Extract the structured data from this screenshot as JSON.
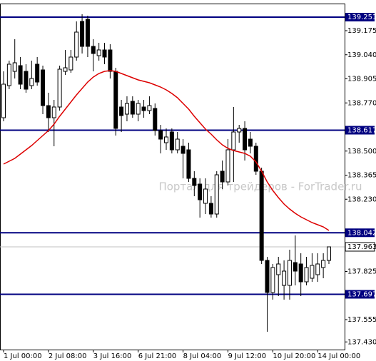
{
  "chart_data": {
    "type": "candlestick",
    "watermark": "Портал для трейдеров - ForTrader.ru",
    "categories": [
      "1 Jul 00:00",
      null,
      null,
      null,
      null,
      null,
      null,
      null,
      "2 Jul 08:00",
      null,
      null,
      null,
      null,
      null,
      null,
      null,
      "3 Jul 16:00",
      null,
      null,
      null,
      null,
      null,
      null,
      null,
      "6 Jul 21:00",
      null,
      null,
      null,
      null,
      null,
      null,
      null,
      "8 Jul 04:00",
      null,
      null,
      null,
      null,
      null,
      null,
      null,
      "9 Jul 12:00",
      null,
      null,
      null,
      null,
      null,
      null,
      null,
      "10 Jul 20:00",
      null,
      null,
      null,
      null,
      null,
      null,
      null,
      "14 Jul 00:00",
      null,
      null
    ],
    "open": [
      138.687,
      138.867,
      138.947,
      138.979,
      138.947,
      138.867,
      138.987,
      138.955,
      138.755,
      138.687,
      138.747,
      138.947,
      138.955,
      139.027,
      139.227,
      139.239,
      139.087,
      139.035,
      139.067,
      139.067,
      138.947,
      138.747,
      138.707,
      138.779,
      138.707,
      138.747,
      138.727,
      138.739,
      138.615,
      138.547,
      138.607,
      138.507,
      138.527,
      138.507,
      138.347,
      138.315,
      138.207,
      138.207,
      138.147,
      138.387,
      138.327,
      138.507,
      138.607,
      138.627,
      138.567,
      138.527,
      138.387,
      137.887,
      137.707,
      137.807,
      137.747,
      137.747,
      137.875,
      137.867,
      137.767,
      137.787,
      137.807,
      137.847,
      137.887
    ],
    "high": [
      138.947,
      139.007,
      139.127,
      139.027,
      138.987,
      139.007,
      139.027,
      138.979,
      138.827,
      138.787,
      138.979,
      139.067,
      139.067,
      139.227,
      139.267,
      139.259,
      139.127,
      139.107,
      139.107,
      139.099,
      138.967,
      138.787,
      138.807,
      138.807,
      138.787,
      138.787,
      138.807,
      138.767,
      138.647,
      138.627,
      138.627,
      138.607,
      138.567,
      138.547,
      138.387,
      138.347,
      138.347,
      138.247,
      138.387,
      138.447,
      138.567,
      138.747,
      138.647,
      138.667,
      138.607,
      138.547,
      138.407,
      137.907,
      137.867,
      137.907,
      137.887,
      137.947,
      138.027,
      137.927,
      137.907,
      137.927,
      137.927,
      137.927,
      137.947
    ],
    "low": [
      138.667,
      138.847,
      138.907,
      138.847,
      138.827,
      138.847,
      138.867,
      138.707,
      138.607,
      138.527,
      138.727,
      138.927,
      138.939,
      139.007,
      139.047,
      139.027,
      138.947,
      139.007,
      138.987,
      138.907,
      138.587,
      138.607,
      138.667,
      138.687,
      138.667,
      138.687,
      138.707,
      138.587,
      138.487,
      138.507,
      138.487,
      138.487,
      138.347,
      138.327,
      138.247,
      138.127,
      138.147,
      138.127,
      138.127,
      138.287,
      138.307,
      138.327,
      138.547,
      138.447,
      138.487,
      138.367,
      137.867,
      137.487,
      137.667,
      137.687,
      137.667,
      137.667,
      137.747,
      137.687,
      137.747,
      137.767,
      137.767,
      137.787,
      137.867
    ],
    "close": [
      138.875,
      138.987,
      138.995,
      138.875,
      138.847,
      138.907,
      138.887,
      138.755,
      138.687,
      138.747,
      138.959,
      138.967,
      139.027,
      139.167,
      139.087,
      139.087,
      139.047,
      139.067,
      139.027,
      138.947,
      138.627,
      138.699,
      138.767,
      138.707,
      138.767,
      138.727,
      138.755,
      138.615,
      138.567,
      138.579,
      138.507,
      138.567,
      138.487,
      138.347,
      138.307,
      138.227,
      138.287,
      138.147,
      138.367,
      138.327,
      138.507,
      138.607,
      138.627,
      138.507,
      138.527,
      138.387,
      137.887,
      137.707,
      137.847,
      137.867,
      137.827,
      137.887,
      137.827,
      137.767,
      137.847,
      137.859,
      137.867,
      137.887,
      137.963
    ],
    "ma": [
      138.427,
      138.443,
      138.459,
      138.483,
      138.507,
      138.531,
      138.559,
      138.587,
      138.615,
      138.651,
      138.695,
      138.735,
      138.775,
      138.815,
      138.851,
      138.887,
      138.915,
      138.935,
      138.947,
      138.951,
      138.947,
      138.935,
      138.923,
      138.911,
      138.899,
      138.891,
      138.883,
      138.871,
      138.859,
      138.843,
      138.823,
      138.799,
      138.767,
      138.735,
      138.695,
      138.659,
      138.623,
      138.595,
      138.563,
      138.535,
      138.515,
      138.503,
      138.495,
      138.487,
      138.471,
      138.439,
      138.387,
      138.327,
      138.279,
      138.239,
      138.203,
      138.175,
      138.151,
      138.131,
      138.115,
      138.099,
      138.087,
      138.075,
      138.055
    ],
    "ma_color": "#dd0000",
    "up_color": "#ffffff",
    "down_color": "#000000",
    "levels": [
      139.251,
      138.617,
      138.042,
      137.697
    ],
    "level_color": "#000080",
    "current_price": 137.963,
    "ylim": [
      137.387,
      139.327
    ],
    "yticks": [
      139.175,
      {
        "value": 139.04,
        "label": "139.040"
      },
      138.905,
      {
        "value": 138.77,
        "label": "138.770"
      },
      {
        "value": 138.5,
        "label": "138.500"
      },
      138.365,
      {
        "value": 138.23,
        "label": "138.230"
      },
      137.825,
      137.555,
      {
        "value": 137.43,
        "label": "137.430"
      }
    ]
  }
}
